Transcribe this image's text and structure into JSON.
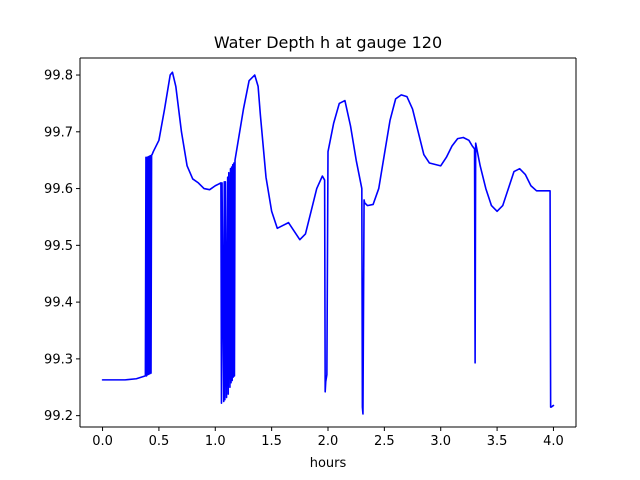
{
  "chart_data": {
    "type": "line",
    "title": "Water Depth h at gauge 120",
    "xlabel": "hours",
    "ylabel": "",
    "xlim": [
      -0.2,
      4.2
    ],
    "ylim": [
      99.18,
      99.83
    ],
    "xticks": [
      0.0,
      0.5,
      1.0,
      1.5,
      2.0,
      2.5,
      3.0,
      3.5,
      4.0
    ],
    "xtick_labels": [
      "0.0",
      "0.5",
      "1.0",
      "1.5",
      "2.0",
      "2.5",
      "3.0",
      "3.5",
      "4.0"
    ],
    "yticks": [
      99.2,
      99.3,
      99.4,
      99.5,
      99.6,
      99.7,
      99.8
    ],
    "ytick_labels": [
      "99.2",
      "99.3",
      "99.4",
      "99.5",
      "99.6",
      "99.7",
      "99.8"
    ],
    "grid": false,
    "series": [
      {
        "color": "#0000ff",
        "x": [
          0.0,
          0.2,
          0.3,
          0.38,
          0.385,
          0.39,
          0.395,
          0.4,
          0.405,
          0.41,
          0.415,
          0.42,
          0.425,
          0.43,
          0.435,
          0.44,
          0.45,
          0.5,
          0.55,
          0.6,
          0.62,
          0.65,
          0.7,
          0.75,
          0.8,
          0.85,
          0.9,
          0.95,
          1.0,
          1.03,
          1.05,
          1.055,
          1.06,
          1.075,
          1.08,
          1.085,
          1.09,
          1.1,
          1.11,
          1.115,
          1.12,
          1.13,
          1.135,
          1.14,
          1.145,
          1.15,
          1.155,
          1.16,
          1.165,
          1.17,
          1.175,
          1.2,
          1.25,
          1.3,
          1.35,
          1.38,
          1.4,
          1.45,
          1.5,
          1.55,
          1.6,
          1.65,
          1.7,
          1.75,
          1.8,
          1.85,
          1.9,
          1.95,
          1.97,
          1.975,
          1.98,
          1.99,
          2.0,
          2.05,
          2.1,
          2.15,
          2.2,
          2.25,
          2.3,
          2.305,
          2.31,
          2.32,
          2.325,
          2.35,
          2.4,
          2.45,
          2.5,
          2.55,
          2.6,
          2.65,
          2.7,
          2.75,
          2.8,
          2.85,
          2.9,
          3.0,
          3.05,
          3.1,
          3.15,
          3.2,
          3.25,
          3.28,
          3.3,
          3.305,
          3.31,
          3.32,
          3.35,
          3.4,
          3.45,
          3.5,
          3.55,
          3.6,
          3.65,
          3.7,
          3.75,
          3.8,
          3.85,
          3.9,
          3.95,
          3.97,
          3.975,
          3.98,
          4.0
        ],
        "y": [
          99.263,
          99.263,
          99.265,
          99.27,
          99.655,
          99.27,
          99.655,
          99.272,
          99.656,
          99.273,
          99.657,
          99.274,
          99.658,
          99.275,
          99.659,
          99.66,
          99.665,
          99.685,
          99.74,
          99.8,
          99.805,
          99.78,
          99.7,
          99.64,
          99.617,
          99.61,
          99.6,
          99.598,
          99.605,
          99.608,
          99.61,
          99.222,
          99.61,
          99.225,
          99.612,
          99.228,
          99.612,
          99.232,
          99.62,
          99.238,
          99.628,
          99.25,
          99.635,
          99.258,
          99.638,
          99.262,
          99.642,
          99.268,
          99.645,
          99.27,
          99.65,
          99.68,
          99.74,
          99.79,
          99.8,
          99.78,
          99.73,
          99.62,
          99.56,
          99.53,
          99.535,
          99.54,
          99.525,
          99.51,
          99.52,
          99.56,
          99.6,
          99.622,
          99.615,
          99.242,
          99.26,
          99.272,
          99.665,
          99.715,
          99.75,
          99.755,
          99.71,
          99.65,
          99.6,
          99.215,
          99.203,
          99.58,
          99.575,
          99.57,
          99.572,
          99.6,
          99.66,
          99.72,
          99.758,
          99.765,
          99.762,
          99.74,
          99.7,
          99.66,
          99.645,
          99.64,
          99.655,
          99.675,
          99.688,
          99.69,
          99.685,
          99.675,
          99.67,
          99.293,
          99.68,
          99.67,
          99.64,
          99.6,
          99.57,
          99.56,
          99.57,
          99.6,
          99.63,
          99.635,
          99.625,
          99.605,
          99.596,
          99.596,
          99.596,
          99.596,
          99.215,
          99.215,
          99.218
        ]
      }
    ]
  }
}
